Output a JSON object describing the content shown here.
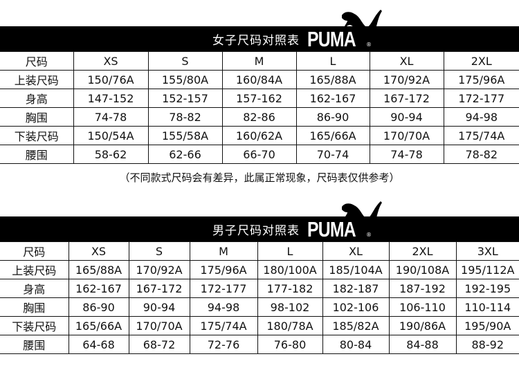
{
  "women": {
    "title": "女子尺码对照表",
    "brand": "PUMA",
    "reg": "®",
    "header": [
      "尺码",
      "XS",
      "S",
      "M",
      "L",
      "XL",
      "2XL"
    ],
    "rows": [
      [
        "上装尺码",
        "150/76A",
        "155/80A",
        "160/84A",
        "165/88A",
        "170/92A",
        "175/96A"
      ],
      [
        "身高",
        "147-152",
        "152-157",
        "157-162",
        "162-167",
        "167-172",
        "172-177"
      ],
      [
        "胸围",
        "74-78",
        "78-82",
        "82-86",
        "86-90",
        "90-94",
        "94-98"
      ],
      [
        "下装尺码",
        "150/54A",
        "155/58A",
        "160/62A",
        "165/66A",
        "170/70A",
        "175/74A"
      ],
      [
        "腰围",
        "58-62",
        "62-66",
        "66-70",
        "70-74",
        "74-78",
        "78-82"
      ]
    ]
  },
  "note": "（不同款式尺码会有差异，此属正常现象，尺码表仅供参考）",
  "men": {
    "title": "男子尺码对照表",
    "brand": "PUMA",
    "reg": "®",
    "header": [
      "尺码",
      "XS",
      "S",
      "M",
      "L",
      "XL",
      "2XL",
      "3XL"
    ],
    "rows": [
      [
        "上装尺码",
        "165/88A",
        "170/92A",
        "175/96A",
        "180/100A",
        "185/104A",
        "190/108A",
        "195/112A"
      ],
      [
        "身高",
        "162-167",
        "167-172",
        "172-177",
        "177-182",
        "182-187",
        "187-192",
        "192-195"
      ],
      [
        "胸围",
        "86-90",
        "90-94",
        "94-98",
        "98-102",
        "102-106",
        "106-110",
        "110-114"
      ],
      [
        "下装尺码",
        "165/66A",
        "170/70A",
        "175/74A",
        "180/78A",
        "185/82A",
        "190/86A",
        "195/90A"
      ],
      [
        "腰围",
        "64-68",
        "68-72",
        "72-76",
        "76-80",
        "80-84",
        "84-88",
        "88-92"
      ]
    ]
  },
  "icons": {
    "logo": "puma-cat-icon"
  }
}
